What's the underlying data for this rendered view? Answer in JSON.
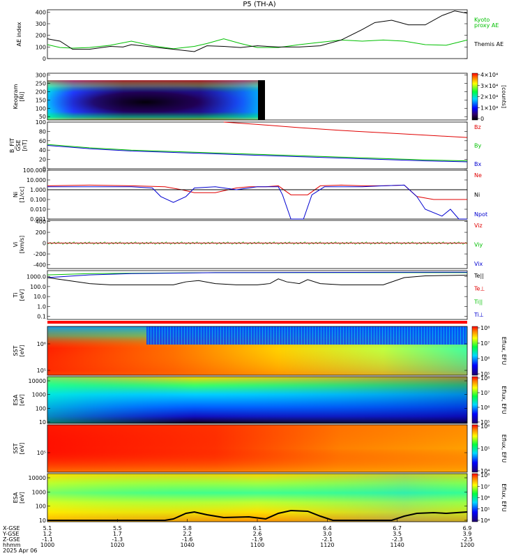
{
  "title": "P5 (TH-A)",
  "colors": {
    "green": "#00c000",
    "red": "#e00000",
    "blue": "#0000d0",
    "black": "#000000"
  },
  "chart_data": [
    {
      "id": "ae",
      "type": "line",
      "ylabel": "AE index",
      "yticks": [
        "0",
        "100",
        "200",
        "300",
        "400"
      ],
      "ylim": [
        0,
        420
      ],
      "legend": [
        {
          "text": "Kyoto",
          "color": "#00c000"
        },
        {
          "text": "proxy AE",
          "color": "#00c000"
        },
        {
          "text": "Themis AE",
          "color": "#000000"
        }
      ],
      "series": [
        {
          "name": "Kyoto proxy AE",
          "color": "#00c000",
          "x": [
            0,
            3,
            6,
            10,
            15,
            20,
            25,
            30,
            35,
            38,
            42,
            46,
            50,
            55,
            60,
            65,
            70,
            75,
            80,
            85,
            90,
            95,
            100
          ],
          "y": [
            120,
            95,
            90,
            95,
            115,
            150,
            110,
            85,
            105,
            130,
            170,
            130,
            95,
            95,
            120,
            140,
            160,
            150,
            160,
            150,
            120,
            115,
            160
          ]
        },
        {
          "name": "Themis AE",
          "color": "#000000",
          "x": [
            0,
            3,
            6,
            10,
            15,
            18,
            20,
            25,
            30,
            35,
            38,
            42,
            46,
            50,
            55,
            60,
            65,
            70,
            75,
            78,
            82,
            86,
            90,
            94,
            97,
            100
          ],
          "y": [
            170,
            150,
            80,
            80,
            105,
            100,
            120,
            100,
            80,
            60,
            110,
            105,
            95,
            110,
            100,
            100,
            110,
            160,
            250,
            310,
            330,
            290,
            290,
            370,
            410,
            390
          ]
        }
      ]
    },
    {
      "id": "keogram",
      "type": "heatmap",
      "ylabel": "Keogram",
      "ylabel2": "[Ri]",
      "yticks": [
        "50",
        "100",
        "150",
        "200",
        "250",
        "300"
      ],
      "ylim": [
        30,
        310
      ],
      "colorbar_ticks": [
        "0",
        "1×10⁴",
        "2×10⁴",
        "3×10⁴",
        "4×10⁴"
      ],
      "colorbar_label": "[counts]"
    },
    {
      "id": "bfield",
      "type": "line",
      "ylabel": "B_FIT",
      "ylabel2": "GSE",
      "ylabel3": "[nT]",
      "yticks": [
        "0",
        "20",
        "40",
        "60",
        "80",
        "100"
      ],
      "ylim": [
        0,
        100
      ],
      "legend": [
        {
          "text": "Bz",
          "color": "#e00000"
        },
        {
          "text": "By",
          "color": "#00c000"
        },
        {
          "text": "Bx",
          "color": "#0000d0"
        }
      ],
      "series": [
        {
          "name": "Bz",
          "color": "#e00000",
          "x": [
            42,
            50,
            60,
            70,
            80,
            90,
            100
          ],
          "y": [
            100,
            95,
            88,
            82,
            77,
            72,
            67
          ]
        },
        {
          "name": "By",
          "color": "#00c000",
          "x": [
            0,
            10,
            20,
            30,
            40,
            50,
            60,
            70,
            80,
            90,
            100
          ],
          "y": [
            52,
            45,
            40,
            37,
            34,
            31,
            28,
            25,
            22,
            19,
            17
          ]
        },
        {
          "name": "Bx",
          "color": "#0000d0",
          "x": [
            0,
            10,
            20,
            30,
            40,
            50,
            60,
            70,
            80,
            90,
            100
          ],
          "y": [
            50,
            43,
            38,
            35,
            32,
            29,
            26,
            23,
            20,
            17,
            15
          ]
        }
      ]
    },
    {
      "id": "density",
      "type": "line",
      "scale": "log",
      "ylabel": "Ni",
      "ylabel2": "[1/cc]",
      "yticks": [
        "0.001",
        "0.010",
        "0.100",
        "1.000",
        "10.000",
        "100.000"
      ],
      "ylim": [
        0.001,
        100
      ],
      "legend": [
        {
          "text": "Ne",
          "color": "#e00000"
        },
        {
          "text": "Ni",
          "color": "#000000"
        },
        {
          "text": "Npot",
          "color": "#0000d0"
        }
      ],
      "series": [
        {
          "name": "Ne",
          "color": "#e00000",
          "x": [
            0,
            10,
            20,
            28,
            32,
            35,
            40,
            45,
            48,
            52,
            55,
            58,
            62,
            65,
            70,
            75,
            80,
            85,
            88,
            92,
            96,
            100
          ],
          "y": [
            2.5,
            3,
            2.5,
            2,
            1,
            0.5,
            0.5,
            1.5,
            2,
            2,
            2.5,
            0.3,
            0.3,
            2.5,
            3,
            2.5,
            2.5,
            3,
            0.2,
            0.1,
            0.1,
            0.1
          ]
        },
        {
          "name": "Ni",
          "color": "#000000",
          "x": [
            0,
            20,
            40,
            60,
            80,
            100
          ],
          "y": [
            1,
            1,
            1,
            1,
            1,
            1
          ]
        },
        {
          "name": "Npot",
          "color": "#0000d0",
          "x": [
            0,
            10,
            20,
            25,
            27,
            30,
            33,
            35,
            40,
            45,
            50,
            55,
            56,
            58,
            61,
            63,
            66,
            70,
            75,
            80,
            85,
            88,
            90,
            94,
            96,
            98,
            100
          ],
          "y": [
            2,
            2,
            2,
            1.5,
            0.2,
            0.05,
            0.2,
            1.5,
            2,
            1,
            2,
            2,
            0.3,
            0.001,
            0.001,
            0.3,
            2,
            2,
            2,
            2.5,
            3,
            0.2,
            0.01,
            0.002,
            0.01,
            0.001,
            0.001
          ]
        }
      ]
    },
    {
      "id": "velocity",
      "type": "line",
      "ylabel": "Vi",
      "ylabel2": "[km/s]",
      "yticks": [
        "-400",
        "-200",
        "0",
        "200",
        "400"
      ],
      "ylim": [
        -470,
        420
      ],
      "legend": [
        {
          "text": "Viz",
          "color": "#e00000"
        },
        {
          "text": "Viy",
          "color": "#00c000"
        },
        {
          "text": "Vix",
          "color": "#0000d0"
        }
      ],
      "series": [
        {
          "name": "Viz",
          "color": "#e00000",
          "x": [
            0,
            100
          ],
          "y": [
            0,
            0
          ]
        },
        {
          "name": "Viy",
          "color": "#00c000",
          "x": [
            0,
            100
          ],
          "y": [
            0,
            0
          ]
        },
        {
          "name": "Vix",
          "color": "#0000d0",
          "x": [
            0,
            100
          ],
          "y": [
            0,
            0
          ]
        }
      ]
    },
    {
      "id": "temperature",
      "type": "line",
      "scale": "log",
      "ylabel": "Ti",
      "ylabel2": "[eV]",
      "yticks": [
        "0.1",
        "1.0",
        "10.0",
        "100.0",
        "1000.0"
      ],
      "ylim": [
        0.05,
        4000
      ],
      "legend": [
        {
          "text": "Te||",
          "color": "#000000"
        },
        {
          "text": "Te⊥",
          "color": "#e00000"
        },
        {
          "text": "Ti||",
          "color": "#00c000"
        },
        {
          "text": "Ti⊥",
          "color": "#0000d0"
        }
      ],
      "series": [
        {
          "name": "Ti||",
          "color": "#00c000",
          "x": [
            0,
            10,
            20,
            40,
            60,
            80,
            100
          ],
          "y": [
            1500,
            2000,
            2200,
            2500,
            2500,
            2500,
            2500
          ]
        },
        {
          "name": "Ti⊥",
          "color": "#0000d0",
          "x": [
            0,
            10,
            20,
            40,
            60,
            80,
            100
          ],
          "y": [
            800,
            1500,
            2000,
            2500,
            2600,
            2700,
            2800
          ]
        },
        {
          "name": "Te",
          "color": "#000000",
          "x": [
            0,
            5,
            10,
            15,
            20,
            25,
            30,
            33,
            36,
            40,
            45,
            50,
            53,
            55,
            57,
            60,
            62,
            65,
            70,
            75,
            80,
            85,
            90,
            95,
            100
          ],
          "y": [
            800,
            400,
            200,
            150,
            150,
            150,
            150,
            300,
            400,
            200,
            150,
            150,
            200,
            600,
            300,
            200,
            500,
            200,
            150,
            150,
            150,
            800,
            1200,
            1300,
            1400
          ]
        }
      ]
    },
    {
      "id": "sst1",
      "type": "heatmap",
      "ylabel": "SST",
      "ylabel2": "[eV]",
      "yticks": [
        "10⁶",
        "10⁵"
      ],
      "colorbar_ticks": [
        "10⁵",
        "10⁶",
        "10⁷",
        "10⁸"
      ],
      "colorbar_label": "Eflux, EFU"
    },
    {
      "id": "esa1",
      "type": "heatmap",
      "ylabel": "ESA",
      "ylabel2": "[eV]",
      "yticks": [
        "10",
        "100",
        "1000",
        "10000"
      ],
      "colorbar_ticks": [
        "10⁵",
        "10⁶",
        "10⁷",
        "10⁸"
      ],
      "colorbar_label": "Eflux, EFU"
    },
    {
      "id": "sst2",
      "type": "heatmap",
      "ylabel": "SST",
      "ylabel2": "[eV]",
      "yticks": [
        "10⁵"
      ],
      "colorbar_ticks": [
        "10⁴",
        "10⁵",
        "10⁶"
      ],
      "colorbar_label": "Eflux, EFU"
    },
    {
      "id": "esa2",
      "type": "heatmap",
      "ylabel": "ESA",
      "ylabel2": "[eV]",
      "yticks": [
        "10",
        "100",
        "1000",
        "10000"
      ],
      "colorbar_ticks": [
        "10⁴",
        "10⁵",
        "10⁶",
        "10⁷",
        "10⁸"
      ],
      "colorbar_label": "Eflux, EFU"
    }
  ],
  "xaxis": {
    "row_labels": [
      "X-GSE",
      "Y-GSE",
      "Z-GSE",
      "hhmm",
      "2025 Apr 06"
    ],
    "ticks": [
      {
        "x": 0,
        "vals": [
          "5.1",
          "1.2",
          "-1.1",
          "1000"
        ]
      },
      {
        "x": 20,
        "vals": [
          "5.5",
          "1.7",
          "-1.3",
          "1020"
        ]
      },
      {
        "x": 40,
        "vals": [
          "5.8",
          "2.2",
          "-1.6",
          "1040"
        ]
      },
      {
        "x": 60,
        "vals": [
          "6.1",
          "2.6",
          "-1.9",
          "1100"
        ]
      },
      {
        "x": 80,
        "vals": [
          "6.4",
          "3.0",
          "-2.1",
          "1120"
        ]
      },
      {
        "x": 100,
        "vals": [
          "6.7",
          "3.5",
          "-2.3",
          "1140"
        ]
      },
      {
        "x": 120,
        "vals": [
          "6.9",
          "3.9",
          "-2.5",
          "1200"
        ]
      }
    ]
  }
}
